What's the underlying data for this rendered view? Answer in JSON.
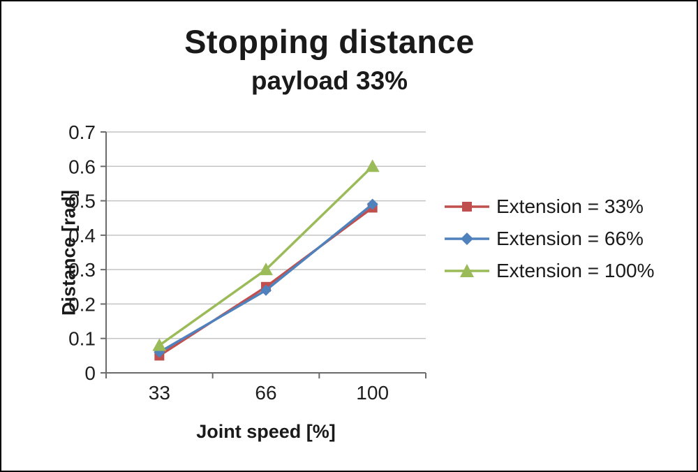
{
  "chart_data": {
    "type": "line",
    "title": "Stopping distance",
    "subtitle": "payload 33%",
    "xlabel": "Joint speed [%]",
    "ylabel": "Distance [rad]",
    "categories": [
      "33",
      "66",
      "100"
    ],
    "series": [
      {
        "name": "Extension = 33%",
        "color": "#c0504d",
        "marker": "square",
        "values": [
          0.05,
          0.25,
          0.48
        ]
      },
      {
        "name": "Extension = 66%",
        "color": "#4f81bd",
        "marker": "diamond",
        "values": [
          0.06,
          0.24,
          0.49
        ]
      },
      {
        "name": "Extension = 100%",
        "color": "#9bbb59",
        "marker": "triangle",
        "values": [
          0.08,
          0.3,
          0.6
        ]
      }
    ],
    "ylim": [
      0,
      0.7
    ],
    "ytick_step": 0.1,
    "grid": true,
    "legend_position": "right",
    "axis_color": "#6b6b6b",
    "grid_color": "#c4c4c4",
    "text_color": "#1f1f1f"
  }
}
